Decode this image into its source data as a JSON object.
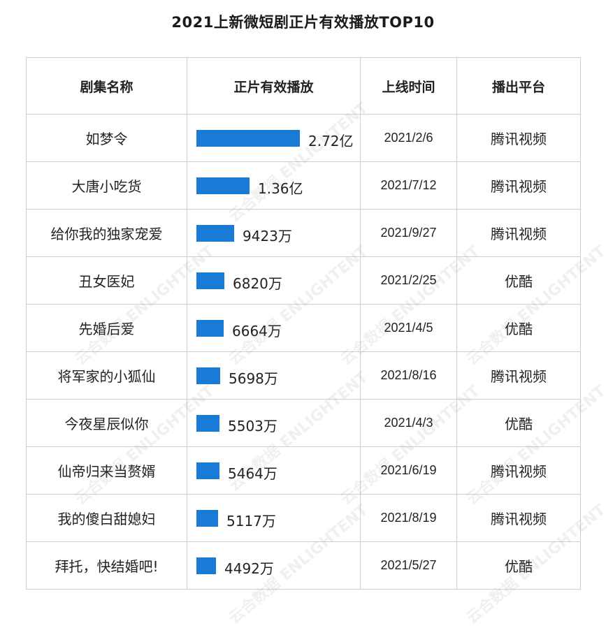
{
  "title": "2021上新微短剧正片有效播放TOP10",
  "chart_data": {
    "type": "table",
    "title": "2021上新微短剧正片有效播放TOP10",
    "columns": [
      "剧集名称",
      "正片有效播放",
      "上线时间",
      "播出平台"
    ],
    "unit": "万",
    "rows": [
      {
        "name": "如梦令",
        "value": 27200,
        "label": "2.72亿",
        "date": "2021/2/6",
        "platform": "腾讯视频"
      },
      {
        "name": "大唐小吃货",
        "value": 13600,
        "label": "1.36亿",
        "date": "2021/7/12",
        "platform": "腾讯视频"
      },
      {
        "name": "给你我的独家宠爱",
        "value": 9423,
        "label": "9423万",
        "date": "2021/9/27",
        "platform": "腾讯视频"
      },
      {
        "name": "丑女医妃",
        "value": 6820,
        "label": "6820万",
        "date": "2021/2/25",
        "platform": "优酷"
      },
      {
        "name": "先婚后爱",
        "value": 6664,
        "label": "6664万",
        "date": "2021/4/5",
        "platform": "优酷"
      },
      {
        "name": "将军家的小狐仙",
        "value": 5698,
        "label": "5698万",
        "date": "2021/8/16",
        "platform": "腾讯视频"
      },
      {
        "name": "今夜星辰似你",
        "value": 5503,
        "label": "5503万",
        "date": "2021/4/3",
        "platform": "优酷"
      },
      {
        "name": "仙帝归来当赘婿",
        "value": 5464,
        "label": "5464万",
        "date": "2021/6/19",
        "platform": "腾讯视频"
      },
      {
        "name": "我的傻白甜媳妇",
        "value": 5117,
        "label": "5117万",
        "date": "2021/8/19",
        "platform": "腾讯视频"
      },
      {
        "name": "拜托，快结婚吧!",
        "value": 4492,
        "label": "4492万",
        "date": "2021/5/27",
        "platform": "优酷"
      }
    ],
    "bar_color": "#1a7bd6"
  },
  "watermark": "云合数据 ENLIGHTENT"
}
